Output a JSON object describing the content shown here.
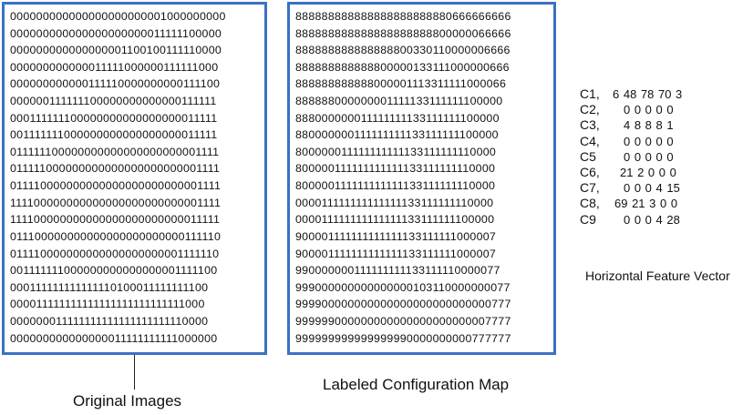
{
  "original_images": {
    "caption": "Original Images",
    "rows": [
      "000000000000000000000001000000000",
      "000000000000000000000011111100000",
      "000000000000000001100100111110000",
      "000000000000011111000000111111000",
      "000000000000111110000000000111100",
      "000000111111100000000000000111111",
      "000111111100000000000000000011111",
      "001111111000000000000000000011111",
      "011111100000000000000000000001111",
      "011111000000000000000000000001111",
      "011110000000000000000000000001111",
      "111100000000000000000000000001111",
      "111100000000000000000000000011111",
      "011100000000000000000000000111110",
      "011110000000000000000000001111110",
      "001111111000000000000000001111100",
      "000111111111111110100011111111100",
      "000011111111111111111111111111000",
      "000000011111111111111111111110000",
      "000000000000000011111111111000000"
    ]
  },
  "configuration_map": {
    "caption": "Labeled Configuration Map",
    "rows": [
      "888888888888888888888880666666666",
      "888888888888888888888800000066666",
      "888888888888888800330110000006666",
      "888888888888800000133111000000666",
      "888888888888000001113311111000066",
      "888888000000001111133111111100000",
      "888000000011111111133111111100000",
      "880000000111111111133111111100000",
      "800000011111111111133111111110000",
      "800000111111111111133111111110000",
      "800000111111111111133111111110000",
      "000011111111111111133111111110000",
      "000011111111111111133111111100000",
      "900001111111111111133111111000007",
      "900001111111111111133111111000007",
      "990000000111111111133111110000077",
      "999000000000000000103110000000077",
      "999900000000000000000000000000777",
      "999999000000000000000000000007777",
      "999999999999999990000000000777777"
    ]
  },
  "feature_vector": {
    "caption": "Horizontal Feature Vector",
    "rows": [
      {
        "label": "C1,",
        "values": "6 48 78 70 3"
      },
      {
        "label": "C2,",
        "values": "0 0 0 0 0"
      },
      {
        "label": "C3,",
        "values": "4 8 8 8 1"
      },
      {
        "label": "C4,",
        "values": "0 0 0 0 0"
      },
      {
        "label": "C5",
        "values": "0 0 0 0 0"
      },
      {
        "label": "C6,",
        "values": "21 2 0 0 0"
      },
      {
        "label": "C7,",
        "values": "0 0 0 4 15"
      },
      {
        "label": "C8,",
        "values": "69 21 3 0 0"
      },
      {
        "label": "C9",
        "values": "0 0 0 4 28"
      }
    ]
  }
}
